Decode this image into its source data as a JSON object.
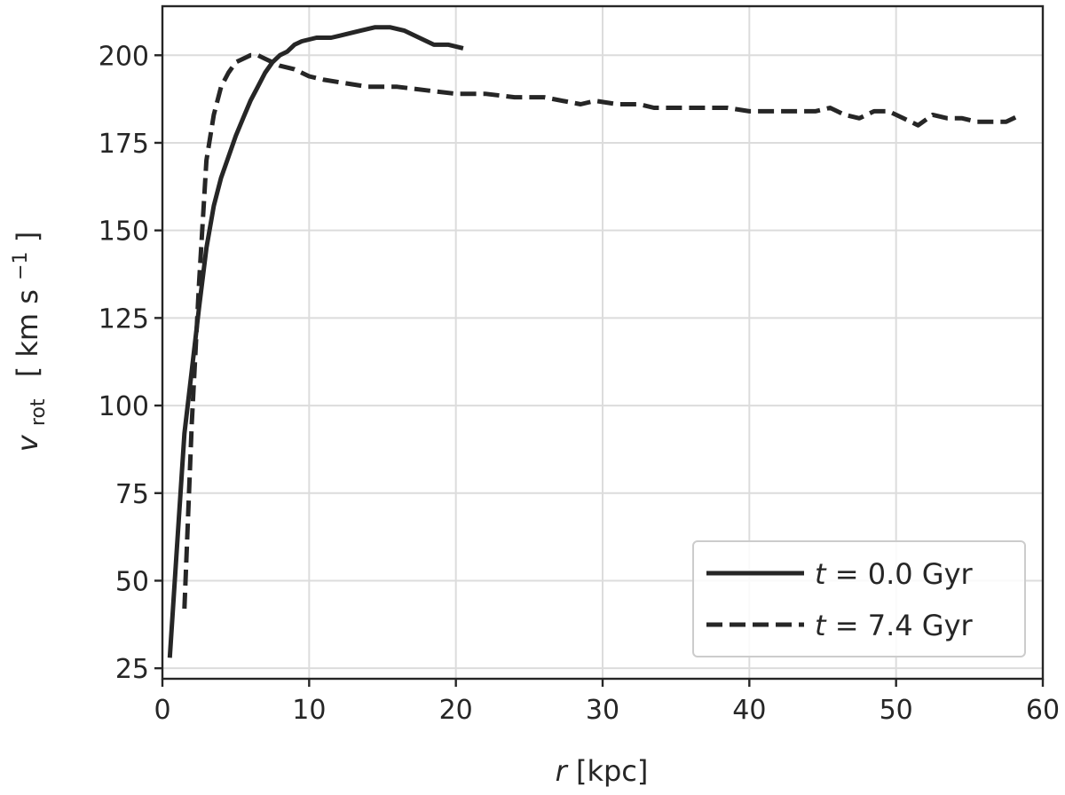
{
  "chart_data": {
    "type": "line",
    "title": "",
    "xlabel": {
      "symbol": "r",
      "unit": "[kpc]"
    },
    "ylabel": {
      "symbol": "v",
      "subscript": "rot",
      "unit": "[ km s",
      "exponent": "−1",
      "unit_close": " ]"
    },
    "xlim": [
      0,
      60
    ],
    "ylim": [
      22,
      214
    ],
    "xticks": [
      0,
      10,
      20,
      30,
      40,
      50,
      60
    ],
    "yticks": [
      25,
      50,
      75,
      100,
      125,
      150,
      175,
      200
    ],
    "grid": true,
    "legend_position": "lower right",
    "series": [
      {
        "name": {
          "symbol": "t",
          "text": " = 0.0 Gyr"
        },
        "style": "solid",
        "color": "#262626",
        "x": [
          0.5,
          1.0,
          1.5,
          2.0,
          2.5,
          3.0,
          3.5,
          4.0,
          4.5,
          5.0,
          5.5,
          6.0,
          6.5,
          7.0,
          7.5,
          8.0,
          8.5,
          9.0,
          9.5,
          10.5,
          11.5,
          12.5,
          13.5,
          14.5,
          15.5,
          16.5,
          17.5,
          18.5,
          19.5,
          20.5
        ],
        "y": [
          28,
          60,
          92,
          110,
          128,
          145,
          157,
          165,
          171,
          177,
          182,
          187,
          191,
          195,
          198,
          200,
          201,
          203,
          204,
          205,
          205,
          206,
          207,
          208,
          208,
          207,
          205,
          203,
          203,
          202
        ]
      },
      {
        "name": {
          "symbol": "t",
          "text": " = 7.4 Gyr"
        },
        "style": "dashed",
        "color": "#262626",
        "x": [
          1.5,
          2.0,
          2.5,
          3.0,
          3.5,
          4.0,
          4.5,
          5.0,
          5.5,
          6.0,
          6.5,
          7.0,
          8.0,
          9.0,
          10.0,
          11.0,
          12.5,
          14.0,
          16.0,
          18.0,
          20.0,
          22.0,
          24.0,
          26.0,
          28.5,
          29.5,
          31.0,
          32.5,
          33.5,
          35.0,
          36.5,
          37.5,
          38.5,
          40.0,
          41.5,
          43.5,
          44.5,
          45.5,
          46.5,
          47.5,
          48.5,
          49.5,
          50.5,
          51.5,
          52.5,
          53.5,
          54.5,
          55.5,
          56.5,
          57.5,
          58.5
        ],
        "y": [
          42,
          95,
          135,
          170,
          183,
          191,
          195,
          198,
          199,
          200,
          200,
          199,
          197,
          196,
          194,
          193,
          192,
          191,
          191,
          190,
          189,
          189,
          188,
          188,
          186,
          187,
          186,
          186,
          185,
          185,
          185,
          185,
          185,
          184,
          184,
          184,
          184,
          185,
          183,
          182,
          184,
          184,
          182,
          180,
          183,
          182,
          182,
          181,
          181,
          181,
          183
        ]
      }
    ]
  }
}
